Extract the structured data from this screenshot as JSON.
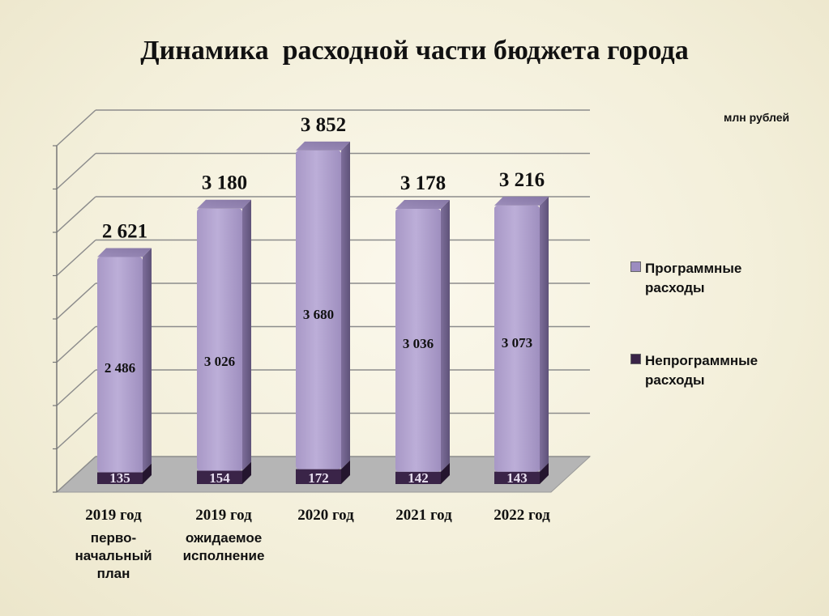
{
  "title": "Динамика  расходной части бюджета города",
  "unit": "млн рублей",
  "chart_data": {
    "type": "bar",
    "stacked": true,
    "three_d": true,
    "categories": [
      {
        "year": "2019 год",
        "sub": [
          "перво-",
          "начальный",
          "план"
        ]
      },
      {
        "year": "2019 год",
        "sub": [
          "ожидаемое",
          "исполнение"
        ]
      },
      {
        "year": "2020 год",
        "sub": []
      },
      {
        "year": "2021 год",
        "sub": []
      },
      {
        "year": "2022 год",
        "sub": []
      }
    ],
    "series": [
      {
        "name": "Непрограммные расходы",
        "values": [
          135,
          154,
          172,
          142,
          143
        ],
        "labels": [
          "135",
          "154",
          "172",
          "142",
          "143"
        ],
        "color": "#3a2448"
      },
      {
        "name": "Программные расходы",
        "values": [
          2486,
          3026,
          3680,
          3036,
          3073
        ],
        "labels": [
          "2 486",
          "3 026",
          "3 680",
          "3 036",
          "3 073"
        ],
        "color": "#b3a3cf"
      }
    ],
    "totals": [
      "2 621",
      "3 180",
      "3 852",
      "3 178",
      "3 216"
    ],
    "ylim": [
      0,
      4000
    ],
    "grid": true,
    "legend": "right"
  }
}
